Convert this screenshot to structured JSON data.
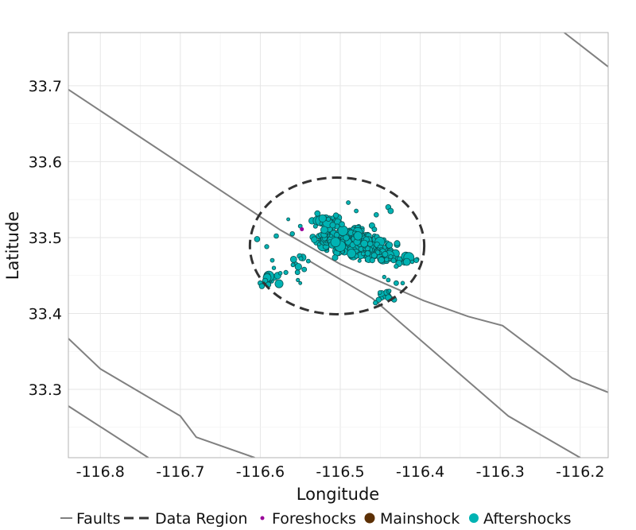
{
  "chart_data": {
    "type": "scatter",
    "title": "",
    "xlabel": "Longitude",
    "ylabel": "Latitude",
    "xlim": [
      -116.84,
      -116.165
    ],
    "ylim": [
      33.21,
      33.77
    ],
    "x_ticks": [
      -116.8,
      -116.7,
      -116.6,
      -116.5,
      -116.4,
      -116.3,
      -116.2
    ],
    "x_tick_labels": [
      "-116.8",
      "-116.7",
      "-116.6",
      "-116.5",
      "-116.4",
      "-116.3",
      "-116.2"
    ],
    "y_ticks": [
      33.3,
      33.4,
      33.5,
      33.6,
      33.7
    ],
    "y_tick_labels": [
      "33.3",
      "33.4",
      "33.5",
      "33.6",
      "33.7"
    ],
    "grid": true,
    "legend_position": "bottom",
    "colors": {
      "faults": "#808080",
      "data_region": "#333333",
      "foreshocks": "#990099",
      "mainshock": "#5c3005",
      "aftershocks": "#00b3b3",
      "marker_edge": "#0b5050"
    },
    "legend": [
      {
        "label": "Faults",
        "kind": "line"
      },
      {
        "label": "Data Region",
        "kind": "dashed"
      },
      {
        "label": "Foreshocks",
        "kind": "small-dot"
      },
      {
        "label": "Mainshock",
        "kind": "big-dot"
      },
      {
        "label": "Aftershocks",
        "kind": "mid-dot"
      }
    ],
    "faults": [
      [
        [
          -116.84,
          33.695
        ],
        [
          -116.575,
          33.51
        ],
        [
          -116.5,
          33.465
        ],
        [
          -116.396,
          33.417
        ],
        [
          -116.34,
          33.396
        ],
        [
          -116.297,
          33.384
        ],
        [
          -116.21,
          33.315
        ],
        [
          -116.165,
          33.296
        ]
      ],
      [
        [
          -116.54,
          33.47
        ],
        [
          -116.46,
          33.42
        ],
        [
          -116.29,
          33.265
        ],
        [
          -116.2,
          33.21
        ]
      ],
      [
        [
          -116.84,
          33.367
        ],
        [
          -116.8,
          33.327
        ],
        [
          -116.7,
          33.265
        ],
        [
          -116.68,
          33.237
        ],
        [
          -116.607,
          33.21
        ]
      ],
      [
        [
          -116.84,
          33.278
        ],
        [
          -116.74,
          33.21
        ]
      ],
      [
        [
          -116.22,
          33.77
        ],
        [
          -116.165,
          33.725
        ]
      ]
    ],
    "data_region": {
      "center": [
        -116.504,
        33.489
      ],
      "radius_lon": 0.109,
      "radius_lat": 0.09
    },
    "foreshocks": [
      [
        -116.548,
        33.511
      ]
    ],
    "mainshock": [],
    "aftershock_clusters": [
      {
        "center": [
          -116.495,
          33.497
        ],
        "spread": [
          0.028,
          0.013
        ],
        "count": 320
      },
      {
        "center": [
          -116.47,
          33.488
        ],
        "spread": [
          0.03,
          0.012
        ],
        "count": 110
      },
      {
        "center": [
          -116.45,
          33.476
        ],
        "spread": [
          0.03,
          0.008
        ],
        "count": 45
      },
      {
        "center": [
          -116.515,
          33.522
        ],
        "spread": [
          0.015,
          0.01
        ],
        "count": 40
      },
      {
        "center": [
          -116.585,
          33.448
        ],
        "spread": [
          0.01,
          0.008
        ],
        "count": 12
      },
      {
        "center": [
          -116.555,
          33.465
        ],
        "spread": [
          0.008,
          0.01
        ],
        "count": 8
      },
      {
        "center": [
          -116.44,
          33.425
        ],
        "spread": [
          0.01,
          0.01
        ],
        "count": 10
      },
      {
        "center": [
          -116.42,
          33.47
        ],
        "spread": [
          0.012,
          0.006
        ],
        "count": 12
      }
    ],
    "aftershocks_individual": [
      [
        -116.6,
        33.44
      ],
      [
        -116.598,
        33.436
      ],
      [
        -116.594,
        33.443
      ],
      [
        -116.59,
        33.438
      ],
      [
        -116.585,
        33.47
      ],
      [
        -116.583,
        33.46
      ],
      [
        -116.575,
        33.453
      ],
      [
        -116.568,
        33.454
      ],
      [
        -116.565,
        33.524
      ],
      [
        -116.56,
        33.505
      ],
      [
        -116.553,
        33.444
      ],
      [
        -116.55,
        33.44
      ],
      [
        -116.545,
        33.458
      ],
      [
        -116.54,
        33.469
      ],
      [
        -116.55,
        33.515
      ],
      [
        -116.49,
        33.546
      ],
      [
        -116.48,
        33.535
      ],
      [
        -116.455,
        33.53
      ],
      [
        -116.44,
        33.54
      ],
      [
        -116.437,
        33.535
      ],
      [
        -116.405,
        33.47
      ],
      [
        -116.41,
        33.468
      ],
      [
        -116.43,
        33.462
      ],
      [
        -116.445,
        33.448
      ],
      [
        -116.44,
        33.444
      ],
      [
        -116.448,
        33.42
      ],
      [
        -116.452,
        33.418
      ],
      [
        -116.456,
        33.414
      ],
      [
        -116.43,
        33.44
      ],
      [
        -116.422,
        33.44
      ],
      [
        -116.46,
        33.47
      ],
      [
        -116.604,
        33.498
      ],
      [
        -116.592,
        33.488
      ],
      [
        -116.58,
        33.502
      ]
    ]
  }
}
